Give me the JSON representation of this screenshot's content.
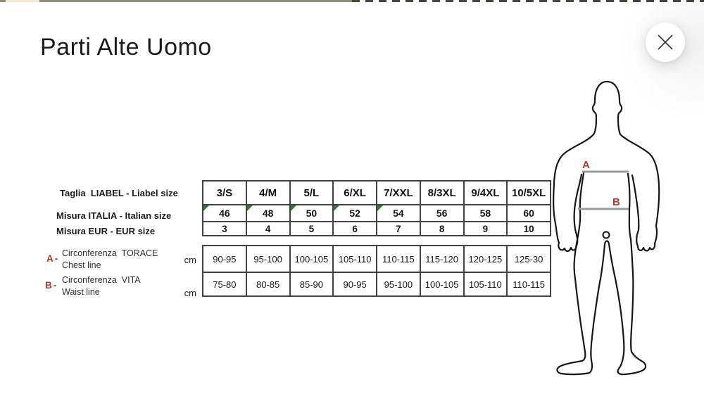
{
  "window": {
    "title": "Parti Alte Uomo"
  },
  "sizes": {
    "taglia_label": "Taglia  LIABEL - Liabel size",
    "taglia_values": [
      "3/S",
      "4/M",
      "5/L",
      "6/XL",
      "7/XXL",
      "8/3XL",
      "9/4XL",
      "10/5XL"
    ],
    "italia_label": "Misura ITALIA - Italian size",
    "italia_values": [
      "46",
      "48",
      "50",
      "52",
      "54",
      "56",
      "58",
      "60"
    ],
    "italia_flagged": [
      0,
      1,
      2,
      3,
      4
    ],
    "eur_label": "Misura EUR - EUR size",
    "eur_values": [
      "3",
      "4",
      "5",
      "6",
      "7",
      "8",
      "9",
      "10"
    ]
  },
  "measures": {
    "unit": "cm",
    "rows": [
      {
        "marker": "A",
        "dash": "-",
        "name_it": "Circonferenza  TORACE",
        "name_en": "Chest line",
        "values": [
          "90-95",
          "95-100",
          "100-105",
          "105-110",
          "110-115",
          "115-120",
          "120-125",
          "125-30"
        ]
      },
      {
        "marker": "B",
        "dash": "-",
        "name_it": "Circonferenza  VITA",
        "name_en": "Waist line",
        "values": [
          "75-80",
          "80-85",
          "85-90",
          "90-95",
          "95-100",
          "100-105",
          "105-110",
          "110-115"
        ]
      }
    ]
  },
  "figure": {
    "chest_marker": "A",
    "waist_marker": "B"
  },
  "colors": {
    "marker_red": "#b23a31",
    "flag_green": "#2e7d32",
    "measure_line": "#9b9b9b",
    "outline": "#161616"
  }
}
